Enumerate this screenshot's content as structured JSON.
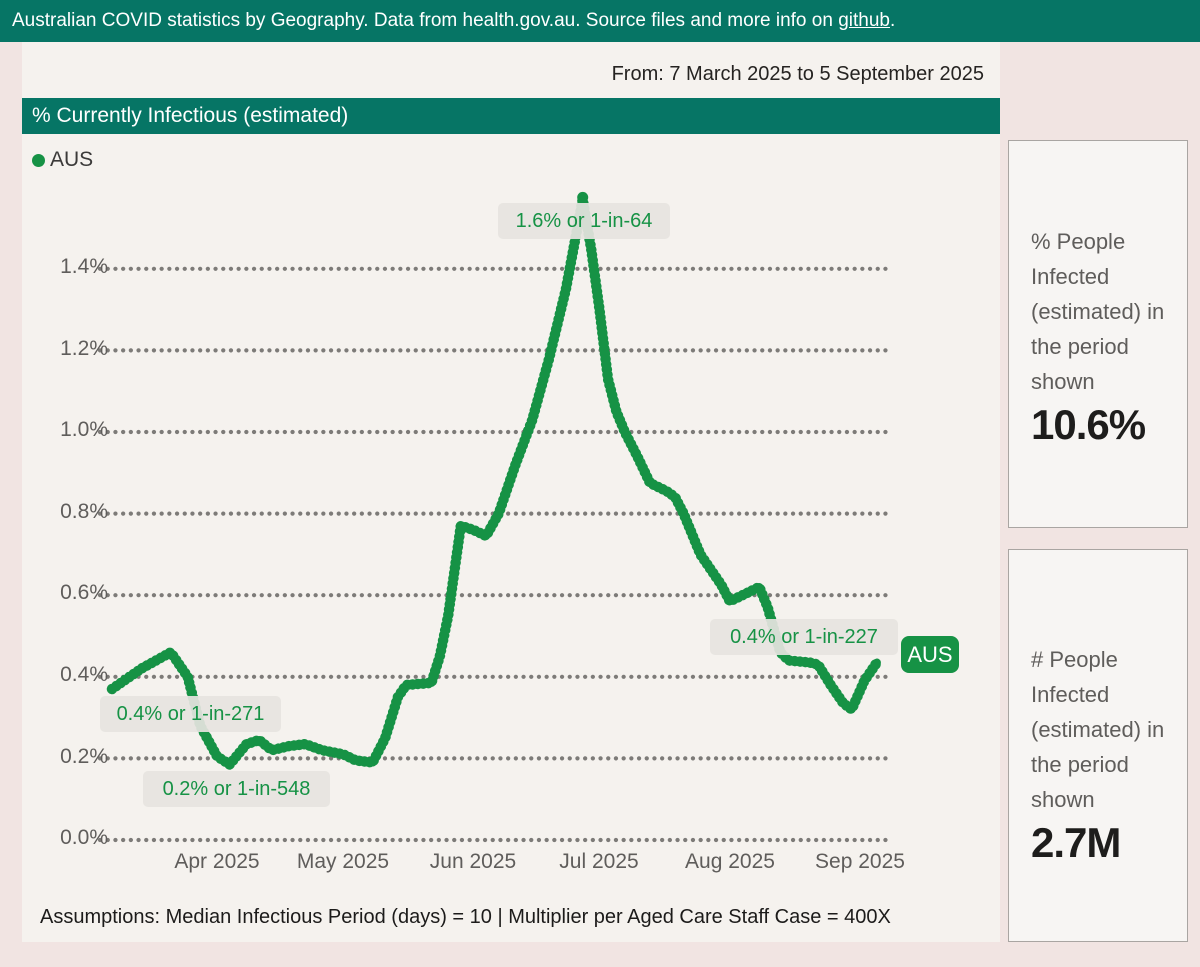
{
  "banner": {
    "prefix": "Australian COVID statistics by Geography. Data from health.gov.au. Source files and more info on ",
    "link_text": "github",
    "suffix": "."
  },
  "period_label": "From: 7 March 2025 to 5 September 2025",
  "chart": {
    "title": "% Currently Infectious (estimated)",
    "legend_label": "AUS",
    "y_ticks": [
      "1.4%",
      "1.2%",
      "1.0%",
      "0.8%",
      "0.6%",
      "0.4%",
      "0.2%",
      "0.0%"
    ],
    "x_labels": [
      "Apr 2025",
      "May 2025",
      "Jun 2025",
      "Jul 2025",
      "Aug 2025",
      "Sep 2025"
    ],
    "series_end_label": "AUS"
  },
  "annotations": {
    "peak": "1.6% or 1-in-64",
    "start": "0.4% or 1-in-271",
    "low": "0.2% or 1-in-548",
    "end": "0.4% or 1-in-227"
  },
  "cards": [
    {
      "label": "% People Infected (estimated) in the period shown",
      "value": "10.6%"
    },
    {
      "label": "# People Infected (estimated) in the period shown",
      "value": "2.7M"
    }
  ],
  "assumptions": "Assumptions: Median Infectious Period (days) = 10 | Multiplier per Aged Care Staff Case = 400X",
  "colors": {
    "accent_green": "#169245",
    "teal": "#067565",
    "grid_dot": "#7d7b78",
    "annotation_bg": "#e6e4e0",
    "page_bg": "#f1e4e2",
    "panel_bg": "#f5f2ee"
  },
  "chart_data": {
    "type": "line",
    "title": "% Currently Infectious (estimated)",
    "xlabel": "",
    "ylabel": "% currently infectious",
    "x_axis_range": [
      "2025-03-07",
      "2025-09-05"
    ],
    "ylim": [
      0.0,
      1.6
    ],
    "y_tick_values": [
      1.4,
      1.2,
      1.0,
      0.8,
      0.6,
      0.4,
      0.2,
      0.0
    ],
    "grid": "dotted horizontal",
    "legend_position": "top-left",
    "series": [
      {
        "name": "AUS",
        "color": "#169245",
        "points": [
          {
            "date": "2025-03-07",
            "value": 0.37
          },
          {
            "date": "2025-03-14",
            "value": 0.42
          },
          {
            "date": "2025-03-21",
            "value": 0.46
          },
          {
            "date": "2025-03-25",
            "value": 0.4
          },
          {
            "date": "2025-03-28",
            "value": 0.28
          },
          {
            "date": "2025-04-01",
            "value": 0.205
          },
          {
            "date": "2025-04-04",
            "value": 0.185
          },
          {
            "date": "2025-04-08",
            "value": 0.235
          },
          {
            "date": "2025-04-11",
            "value": 0.245
          },
          {
            "date": "2025-04-14",
            "value": 0.22
          },
          {
            "date": "2025-04-18",
            "value": 0.23
          },
          {
            "date": "2025-04-22",
            "value": 0.235
          },
          {
            "date": "2025-04-26",
            "value": 0.22
          },
          {
            "date": "2025-05-01",
            "value": 0.21
          },
          {
            "date": "2025-05-04",
            "value": 0.195
          },
          {
            "date": "2025-05-08",
            "value": 0.19
          },
          {
            "date": "2025-05-11",
            "value": 0.25
          },
          {
            "date": "2025-05-14",
            "value": 0.35
          },
          {
            "date": "2025-05-16",
            "value": 0.38
          },
          {
            "date": "2025-05-22",
            "value": 0.385
          },
          {
            "date": "2025-05-24",
            "value": 0.45
          },
          {
            "date": "2025-05-26",
            "value": 0.55
          },
          {
            "date": "2025-05-29",
            "value": 0.77
          },
          {
            "date": "2025-06-01",
            "value": 0.76
          },
          {
            "date": "2025-06-04",
            "value": 0.745
          },
          {
            "date": "2025-06-07",
            "value": 0.8
          },
          {
            "date": "2025-06-11",
            "value": 0.92
          },
          {
            "date": "2025-06-15",
            "value": 1.03
          },
          {
            "date": "2025-06-19",
            "value": 1.18
          },
          {
            "date": "2025-06-23",
            "value": 1.35
          },
          {
            "date": "2025-06-27",
            "value": 1.57
          },
          {
            "date": "2025-06-29",
            "value": 1.45
          },
          {
            "date": "2025-07-01",
            "value": 1.3
          },
          {
            "date": "2025-07-03",
            "value": 1.13
          },
          {
            "date": "2025-07-05",
            "value": 1.05
          },
          {
            "date": "2025-07-07",
            "value": 1.0
          },
          {
            "date": "2025-07-10",
            "value": 0.94
          },
          {
            "date": "2025-07-13",
            "value": 0.875
          },
          {
            "date": "2025-07-17",
            "value": 0.855
          },
          {
            "date": "2025-07-19",
            "value": 0.84
          },
          {
            "date": "2025-07-21",
            "value": 0.8
          },
          {
            "date": "2025-07-25",
            "value": 0.7
          },
          {
            "date": "2025-07-30",
            "value": 0.625
          },
          {
            "date": "2025-08-01",
            "value": 0.585
          },
          {
            "date": "2025-08-04",
            "value": 0.6
          },
          {
            "date": "2025-08-07",
            "value": 0.615
          },
          {
            "date": "2025-08-08",
            "value": 0.62
          },
          {
            "date": "2025-08-10",
            "value": 0.57
          },
          {
            "date": "2025-08-13",
            "value": 0.46
          },
          {
            "date": "2025-08-15",
            "value": 0.44
          },
          {
            "date": "2025-08-20",
            "value": 0.435
          },
          {
            "date": "2025-08-22",
            "value": 0.43
          },
          {
            "date": "2025-08-25",
            "value": 0.38
          },
          {
            "date": "2025-08-28",
            "value": 0.335
          },
          {
            "date": "2025-08-30",
            "value": 0.32
          },
          {
            "date": "2025-09-02",
            "value": 0.39
          },
          {
            "date": "2025-09-05",
            "value": 0.435
          }
        ],
        "annotations": [
          {
            "date": "2025-03-07",
            "label": "0.4% or 1-in-271"
          },
          {
            "date": "2025-04-04",
            "label": "0.2% or 1-in-548"
          },
          {
            "date": "2025-06-27",
            "label": "1.6% or 1-in-64"
          },
          {
            "date": "2025-09-05",
            "label": "0.4% or 1-in-227"
          }
        ]
      }
    ]
  }
}
